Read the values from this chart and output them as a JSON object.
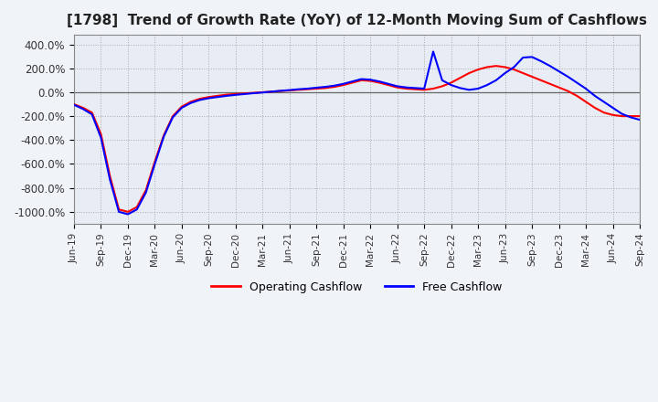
{
  "title": "[1798]  Trend of Growth Rate (YoY) of 12-Month Moving Sum of Cashflows",
  "title_fontsize": 11,
  "ylim": [
    -1100,
    480
  ],
  "yticks": [
    400,
    200,
    0,
    -200,
    -400,
    -600,
    -800,
    -1000
  ],
  "ytick_labels": [
    "400.0%",
    "200.0%",
    "0.0%",
    "-200.0%",
    "-400.0%",
    "-600.0%",
    "-800.0%",
    "-1000.0%"
  ],
  "legend_labels": [
    "Operating Cashflow",
    "Free Cashflow"
  ],
  "legend_colors": [
    "#ff0000",
    "#0000ff"
  ],
  "background_color": "#f0f0f8",
  "plot_bg_color": "#e8e8f0",
  "grid_color": "#aaaaaa",
  "operating_cashflow_x": [
    0,
    1,
    2,
    3,
    4,
    5,
    6,
    7,
    8,
    9,
    10,
    11,
    12,
    13,
    14,
    15,
    16,
    17,
    18,
    19,
    20,
    21,
    22,
    23,
    24,
    25,
    26,
    27,
    28,
    29,
    30,
    31,
    32,
    33,
    34,
    35,
    36,
    37,
    38,
    39,
    40,
    41,
    42,
    43,
    44,
    45,
    46,
    47,
    48,
    49,
    50,
    51,
    52,
    53,
    54,
    55,
    56,
    57,
    58,
    59,
    60,
    61,
    62,
    63
  ],
  "operating_cashflow_y": [
    -100,
    -130,
    -170,
    -350,
    -700,
    -980,
    -1000,
    -960,
    -820,
    -580,
    -360,
    -200,
    -120,
    -80,
    -55,
    -40,
    -30,
    -20,
    -15,
    -10,
    -5,
    0,
    5,
    10,
    15,
    20,
    25,
    30,
    35,
    45,
    60,
    80,
    100,
    95,
    80,
    60,
    40,
    30,
    25,
    20,
    30,
    50,
    80,
    120,
    160,
    190,
    210,
    220,
    210,
    190,
    160,
    130,
    100,
    70,
    40,
    10,
    -30,
    -80,
    -130,
    -170,
    -190,
    -200,
    -200,
    -200
  ],
  "free_cashflow_x": [
    0,
    1,
    2,
    3,
    4,
    5,
    6,
    7,
    8,
    9,
    10,
    11,
    12,
    13,
    14,
    15,
    16,
    17,
    18,
    19,
    20,
    21,
    22,
    23,
    24,
    25,
    26,
    27,
    28,
    29,
    30,
    31,
    32,
    33,
    34,
    35,
    36,
    37,
    38,
    39,
    40,
    41,
    42,
    43,
    44,
    45,
    46,
    47,
    48,
    49,
    50,
    51,
    52,
    53,
    54,
    55,
    56,
    57,
    58,
    59,
    60,
    61,
    62,
    63
  ],
  "free_cashflow_y": [
    -105,
    -140,
    -185,
    -380,
    -730,
    -1000,
    -1020,
    -980,
    -840,
    -600,
    -370,
    -210,
    -130,
    -90,
    -65,
    -50,
    -40,
    -30,
    -22,
    -15,
    -8,
    -2,
    5,
    12,
    18,
    25,
    30,
    38,
    45,
    55,
    70,
    90,
    110,
    105,
    90,
    70,
    50,
    40,
    35,
    30,
    340,
    100,
    60,
    35,
    20,
    30,
    60,
    100,
    160,
    210,
    290,
    295,
    260,
    220,
    175,
    130,
    80,
    30,
    -30,
    -80,
    -130,
    -180,
    -210,
    -230
  ],
  "xtick_positions": [
    0,
    3,
    6,
    9,
    12,
    15,
    18,
    21,
    24,
    27,
    30,
    33,
    36,
    39,
    42,
    45,
    48,
    51,
    54,
    57,
    60,
    63
  ],
  "xtick_labels": [
    "Jun-19",
    "Sep-19",
    "Dec-19",
    "Mar-20",
    "Jun-20",
    "Sep-20",
    "Dec-20",
    "Mar-21",
    "Jun-21",
    "Sep-21",
    "Dec-21",
    "Mar-22",
    "Jun-22",
    "Sep-22",
    "Dec-22",
    "Mar-23",
    "Jun-23",
    "Sep-23",
    "Dec-23",
    "Mar-24",
    "Jun-24",
    "Sep-24"
  ]
}
